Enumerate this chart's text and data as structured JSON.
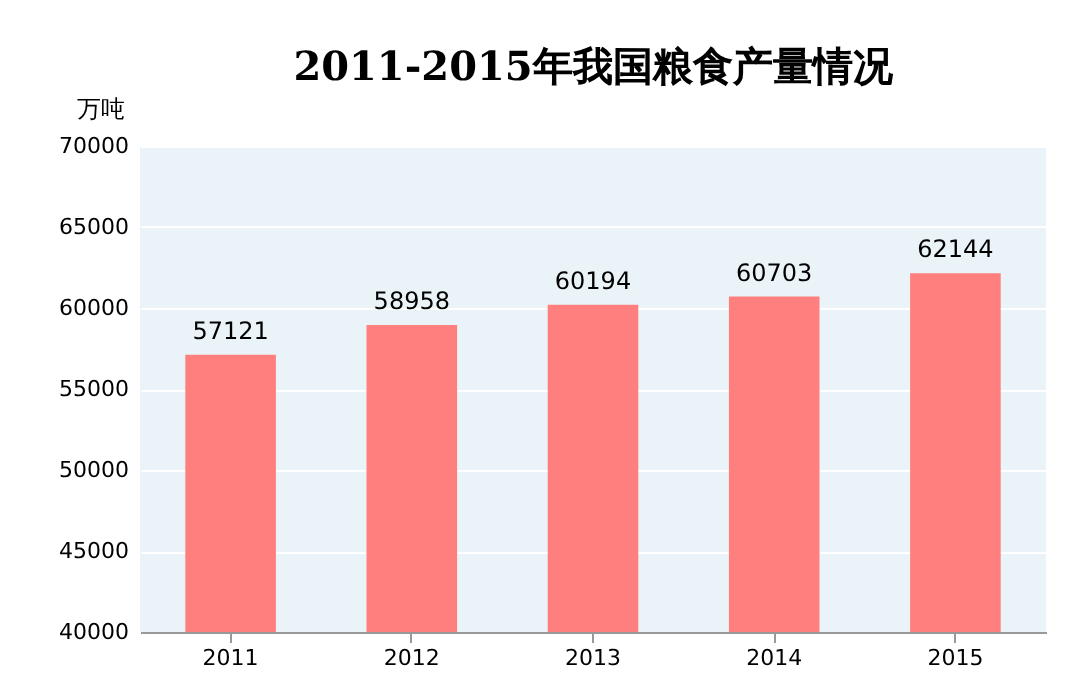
{
  "chart_data": {
    "type": "bar",
    "title": "2011-2015年我国粮食产量情况",
    "ylabel": "万吨",
    "categories": [
      "2011",
      "2012",
      "2013",
      "2014",
      "2015"
    ],
    "values": [
      57121,
      58958,
      60194,
      60703,
      62144
    ],
    "color": "#ff7f7f",
    "ylim": [
      40000,
      70000
    ],
    "yticks": [
      40000,
      45000,
      50000,
      55000,
      60000,
      65000,
      70000
    ],
    "grid": "y",
    "data_labels": true
  }
}
